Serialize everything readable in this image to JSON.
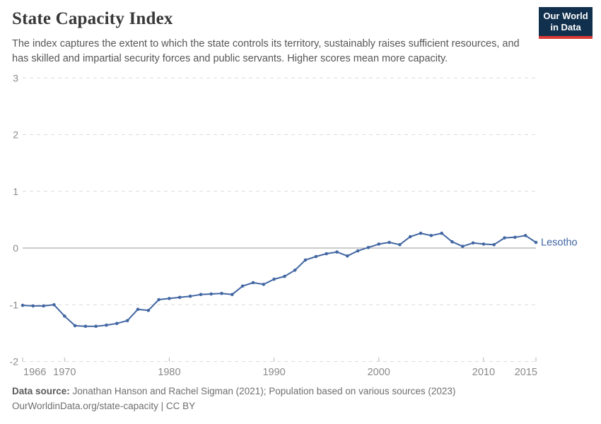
{
  "header": {
    "title": "State Capacity Index",
    "subtitle": "The index captures the extent to which the state controls its territory, sustainably raises sufficient resources, and has skilled and impartial security forces and public servants. Higher scores mean more capacity.",
    "logo": {
      "line1": "Our World",
      "line2": "in Data",
      "bg_color": "#11304e",
      "stripe_color": "#d93a34"
    }
  },
  "chart_data": {
    "type": "line",
    "title": "State Capacity Index",
    "xlabel": "",
    "ylabel": "",
    "xlim": [
      1966,
      2015
    ],
    "ylim": [
      -2,
      3
    ],
    "x_ticks": [
      1966,
      1970,
      1980,
      1990,
      2000,
      2010,
      2015
    ],
    "y_ticks": [
      3,
      2,
      1,
      0,
      -1,
      -2
    ],
    "grid": "horizontal-dashed",
    "zero_line": true,
    "legend_position": "end-of-line-label",
    "series": [
      {
        "name": "Lesotho",
        "color": "#4267a3",
        "x": [
          1966,
          1967,
          1968,
          1969,
          1970,
          1971,
          1972,
          1973,
          1974,
          1975,
          1976,
          1977,
          1978,
          1979,
          1980,
          1981,
          1982,
          1983,
          1984,
          1985,
          1986,
          1987,
          1988,
          1989,
          1990,
          1991,
          1992,
          1993,
          1994,
          1995,
          1996,
          1997,
          1998,
          1999,
          2000,
          2001,
          2002,
          2003,
          2004,
          2005,
          2006,
          2007,
          2008,
          2009,
          2010,
          2011,
          2012,
          2013,
          2014,
          2015
        ],
        "values": [
          -1.01,
          -1.02,
          -1.02,
          -1.0,
          -1.2,
          -1.37,
          -1.38,
          -1.38,
          -1.36,
          -1.33,
          -1.28,
          -1.08,
          -1.1,
          -0.91,
          -0.89,
          -0.87,
          -0.85,
          -0.82,
          -0.81,
          -0.8,
          -0.82,
          -0.67,
          -0.61,
          -0.64,
          -0.55,
          -0.5,
          -0.39,
          -0.21,
          -0.15,
          -0.1,
          -0.07,
          -0.14,
          -0.05,
          0.01,
          0.07,
          0.1,
          0.06,
          0.2,
          0.26,
          0.22,
          0.26,
          0.11,
          0.03,
          0.09,
          0.07,
          0.06,
          0.18,
          0.19,
          0.22,
          0.1
        ]
      }
    ],
    "colors": {
      "gridline": "#dcdcdc",
      "zero_line": "#9a9a9a",
      "y_tick_label": "#8a8a8a",
      "x_tick_label": "#8a8a8a",
      "tick_mark": "#b3b3b3"
    }
  },
  "footer": {
    "source_label": "Data source:",
    "source_text": " Jonathan Hanson and Rachel Sigman (2021); Population based on various sources (2023)",
    "link_text": "OurWorldinData.org/state-capacity | CC BY"
  }
}
